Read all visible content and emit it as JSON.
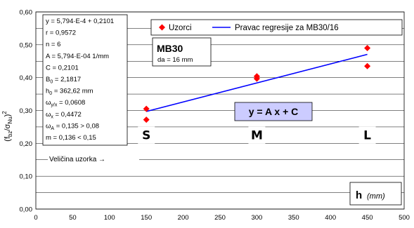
{
  "chart_data": {
    "type": "scatter",
    "xlim": [
      0,
      500
    ],
    "ylim": [
      0.0,
      0.6
    ],
    "x_ticks": [
      "0",
      "50",
      "100",
      "150",
      "200",
      "250",
      "300",
      "350",
      "400",
      "450",
      "500"
    ],
    "y_ticks": [
      "0,00",
      "0,10",
      "0,20",
      "0,30",
      "0,40",
      "0,50",
      "0,60"
    ],
    "grid_y": [
      0.0,
      0.05,
      0.1,
      0.15,
      0.2,
      0.25,
      0.3,
      0.35,
      0.4,
      0.45,
      0.5,
      0.55,
      0.6
    ],
    "ylabel": "(f_bz/σ_Nu)²",
    "ylabel_parts": {
      "open": "(f",
      "sub1": "bz",
      "slash": "/σ",
      "sub2": "Nu",
      "close": ")",
      "sup": "2"
    },
    "xlabel": "h",
    "xlabel_unit": "(mm)",
    "series": [
      {
        "name": "Uzorci",
        "type": "scatter",
        "color": "#ff0000",
        "x": [
          150,
          150,
          300,
          300,
          450,
          450
        ],
        "y": [
          0.305,
          0.272,
          0.404,
          0.397,
          0.49,
          0.435
        ]
      },
      {
        "name": "Pravac regresije za MB30/16",
        "type": "line",
        "color": "#0000ff",
        "x": [
          150,
          450
        ],
        "y": [
          0.297,
          0.4708
        ]
      }
    ],
    "size_labels": [
      {
        "text": "S",
        "x": 150
      },
      {
        "text": "M",
        "x": 300
      },
      {
        "text": "L",
        "x": 450
      }
    ],
    "size_axis_label": "Veličina uzorka →",
    "size_axis_y": 0.225,
    "stats": [
      "y = 5,794·E-4 + 0,2101",
      "r = 0,9572",
      "n = 6",
      "A = 5,794·E-04  1/mm",
      "C = 0,2101",
      "B₀ = 2,1817",
      "h₀ = 362,62 mm",
      "ω_y/x = 0,0608",
      "ω_x = 0,4472",
      "ω_A = 0,135 > 0,08",
      "m = 0,136 < 0,15"
    ],
    "stats_parts": [
      {
        "pre": "y = 5,794·E-4 + 0,2101"
      },
      {
        "pre": "r = 0,9572"
      },
      {
        "pre": "n = 6"
      },
      {
        "pre": "A = 5,794·E-04  1/mm"
      },
      {
        "pre": "C = 0,2101"
      },
      {
        "pre": "B",
        "sub": "0",
        "post": " = 2,1817"
      },
      {
        "pre": "h",
        "sub": "0",
        "post": " = 362,62 mm"
      },
      {
        "pre": "ω",
        "sub": "y/x",
        "post": " = 0,0608"
      },
      {
        "pre": "ω",
        "sub": "x",
        "post": " = 0,4472"
      },
      {
        "pre": "ω",
        "sub": "A",
        "post": " = 0,135 > 0,08"
      },
      {
        "pre": "m = 0,136 < 0,15"
      }
    ],
    "annotations": {
      "mb_title": "MB30",
      "mb_sub": "da = 16 mm",
      "equation": "y = A x + C"
    },
    "legend_position": "top-right",
    "colors": {
      "points": "#ff0000",
      "regression": "#0000ff",
      "equation_box": "#ccccff",
      "grid": "#000000"
    }
  }
}
